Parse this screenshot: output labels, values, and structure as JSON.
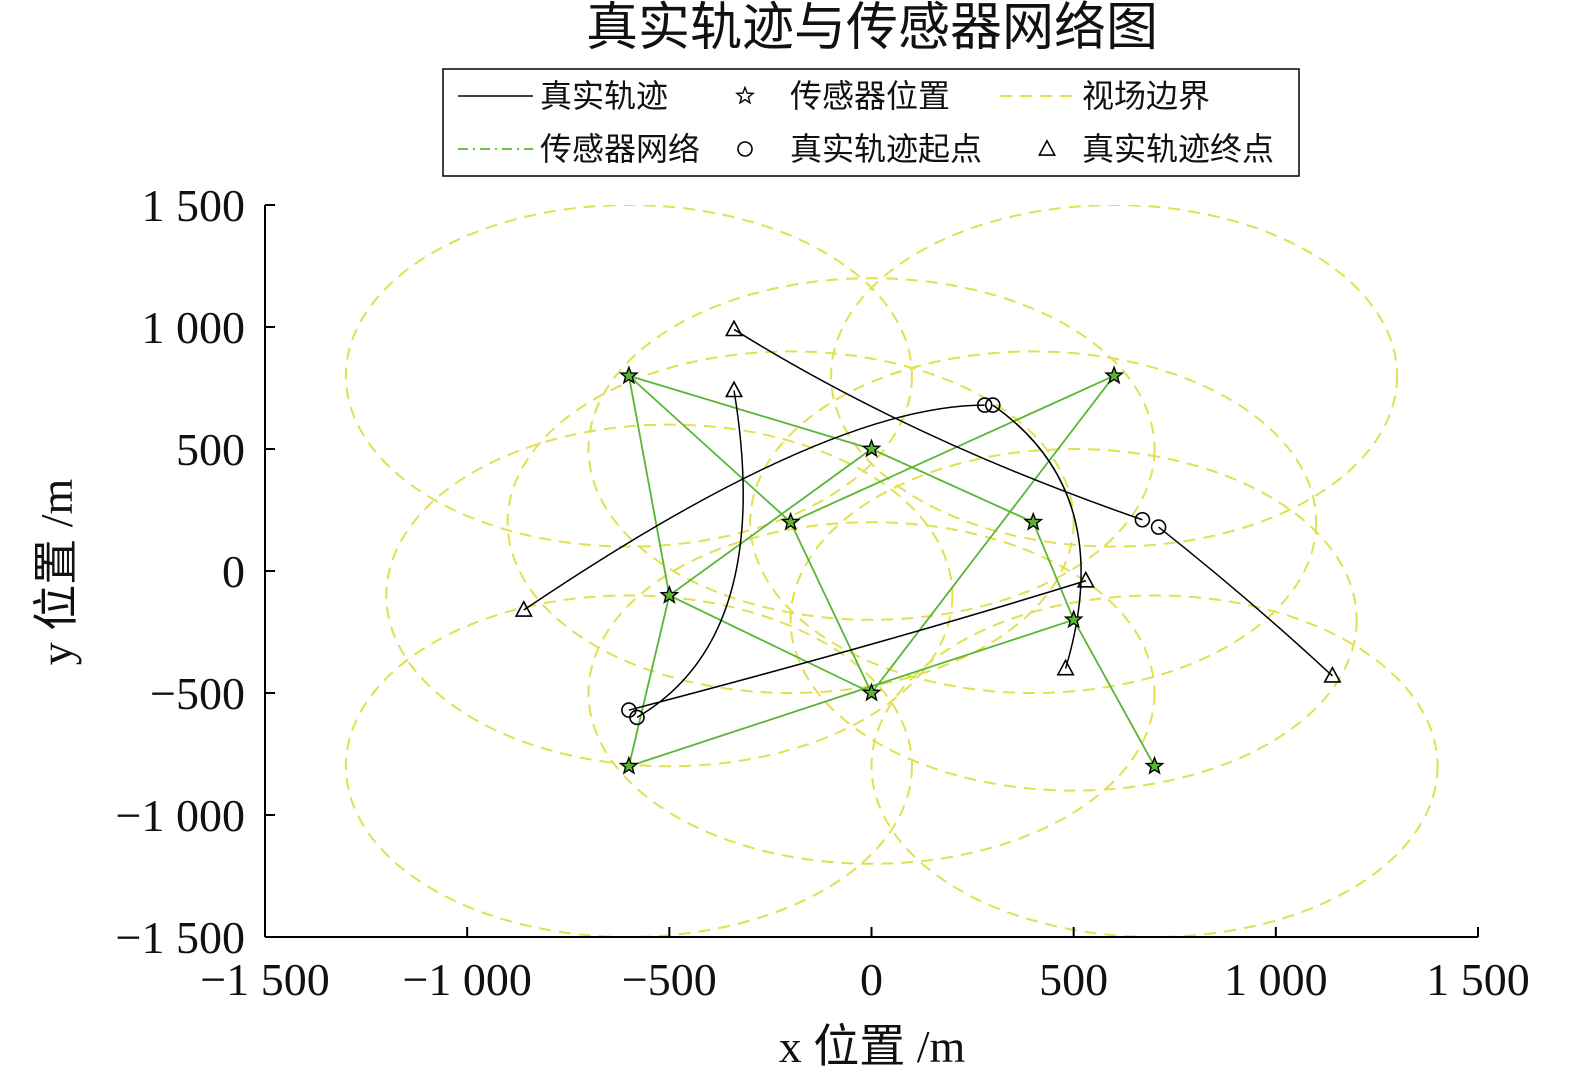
{
  "chart_data": {
    "type": "scatter",
    "title": "真实轨迹与传感器网络图",
    "xlabel": "x 位置 /m",
    "ylabel": "y 位置 /m",
    "xlim": [
      -1500,
      1500
    ],
    "ylim": [
      -1500,
      1500
    ],
    "xticks": [
      -1500,
      -1000,
      -500,
      0,
      500,
      1000,
      1500
    ],
    "yticks": [
      -1500,
      -1000,
      -500,
      0,
      500,
      1000,
      1500
    ],
    "xtick_labels": [
      "−1 500",
      "−1 000",
      "−500",
      "0",
      "500",
      "1 000",
      "1 500"
    ],
    "ytick_labels": [
      "−1 500",
      "−1 000",
      "−500",
      "0",
      "500",
      "1 000",
      "1 500"
    ],
    "grid": false,
    "legend_position": "top-center",
    "legend": [
      {
        "label": "真实轨迹",
        "style": "solid-line",
        "color": "#000000"
      },
      {
        "label": "传感器位置",
        "style": "star-marker",
        "color": "#000000"
      },
      {
        "label": "视场边界",
        "style": "dashed-line",
        "color": "#e0e050"
      },
      {
        "label": "传感器网络",
        "style": "dashdot-line",
        "color": "#5ab532"
      },
      {
        "label": "真实轨迹起点",
        "style": "circle-marker",
        "color": "#000000"
      },
      {
        "label": "真实轨迹终点",
        "style": "triangle-marker",
        "color": "#000000"
      }
    ],
    "sensor_radius": 700,
    "sensors": [
      {
        "x": -600,
        "y": 800
      },
      {
        "x": 600,
        "y": 800
      },
      {
        "x": 0,
        "y": 500
      },
      {
        "x": -200,
        "y": 200
      },
      {
        "x": 400,
        "y": 200
      },
      {
        "x": -500,
        "y": -100
      },
      {
        "x": 500,
        "y": -200
      },
      {
        "x": 0,
        "y": -500
      },
      {
        "x": -600,
        "y": -800
      },
      {
        "x": 700,
        "y": -800
      }
    ],
    "network_links": [
      [
        0,
        2
      ],
      [
        0,
        3
      ],
      [
        0,
        5
      ],
      [
        1,
        3
      ],
      [
        1,
        7
      ],
      [
        2,
        4
      ],
      [
        2,
        5
      ],
      [
        3,
        7
      ],
      [
        4,
        6
      ],
      [
        5,
        7
      ],
      [
        5,
        8
      ],
      [
        6,
        8
      ],
      [
        6,
        9
      ]
    ],
    "trajectories": [
      {
        "start": [
          280,
          680
        ],
        "end": [
          -860,
          -160
        ],
        "mid": [
          -200,
          470
        ]
      },
      {
        "start": [
          300,
          680
        ],
        "end": [
          480,
          -400
        ],
        "mid": [
          500,
          230
        ]
      },
      {
        "start": [
          670,
          210
        ],
        "end": [
          -340,
          990
        ],
        "mid": [
          130,
          570
        ]
      },
      {
        "start": [
          710,
          180
        ],
        "end": [
          1140,
          -430
        ],
        "mid": [
          930,
          -120
        ]
      },
      {
        "start": [
          -600,
          -570
        ],
        "end": [
          530,
          -40
        ],
        "mid": [
          0,
          -300
        ]
      },
      {
        "start": [
          -580,
          -600
        ],
        "end": [
          -340,
          740
        ],
        "mid": [
          -350,
          -100
        ]
      }
    ],
    "colors": {
      "trajectory": "#000000",
      "network": "#5ab532",
      "fov": "#e0e050",
      "sensor_fill": "#5ab532"
    }
  }
}
